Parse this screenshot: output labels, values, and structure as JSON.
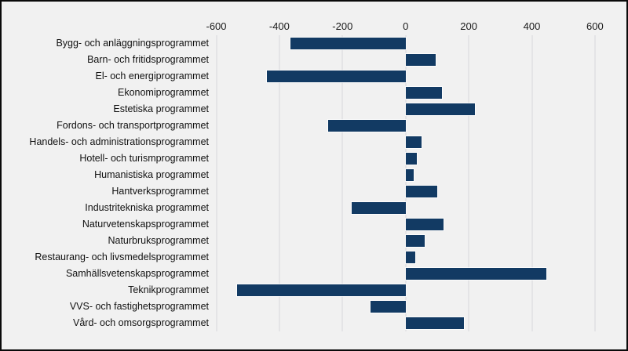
{
  "chart_data": {
    "type": "bar",
    "orientation": "horizontal",
    "title": "",
    "xlabel": "",
    "ylabel": "",
    "categories": [
      "Bygg- och anläggningsprogrammet",
      "Barn- och fritidsprogrammet",
      "El- och energiprogrammet",
      "Ekonomiprogrammet",
      "Estetiska programmet",
      "Fordons- och transportprogrammet",
      "Handels- och administrationsprogrammet",
      "Hotell- och turismprogrammet",
      "Humanistiska programmet",
      "Hantverksprogrammet",
      "Industritekniska programmet",
      "Naturvetenskapsprogrammet",
      "Naturbruksprogrammet",
      "Restaurang- och livsmedelsprogrammet",
      "Samhällsvetenskapsprogrammet",
      "Teknikprogrammet",
      "VVS- och fastighetsprogrammet",
      "Vård- och omsorgsprogrammet"
    ],
    "values": [
      -365,
      95,
      -440,
      115,
      220,
      -245,
      50,
      35,
      25,
      100,
      -170,
      120,
      60,
      30,
      445,
      -535,
      -110,
      185
    ],
    "xlim": [
      -600,
      600
    ],
    "x_ticks": [
      -600,
      -400,
      -200,
      0,
      200,
      400,
      600
    ],
    "x_tick_labels": [
      "-600",
      "-400",
      "-200",
      "0",
      "200",
      "400",
      "600"
    ],
    "axis_position": "top",
    "grid": true,
    "legend": false,
    "bar_color": "#123a63",
    "background_color": "#f1f1f1",
    "gridline_color": "#e4e4e6"
  }
}
